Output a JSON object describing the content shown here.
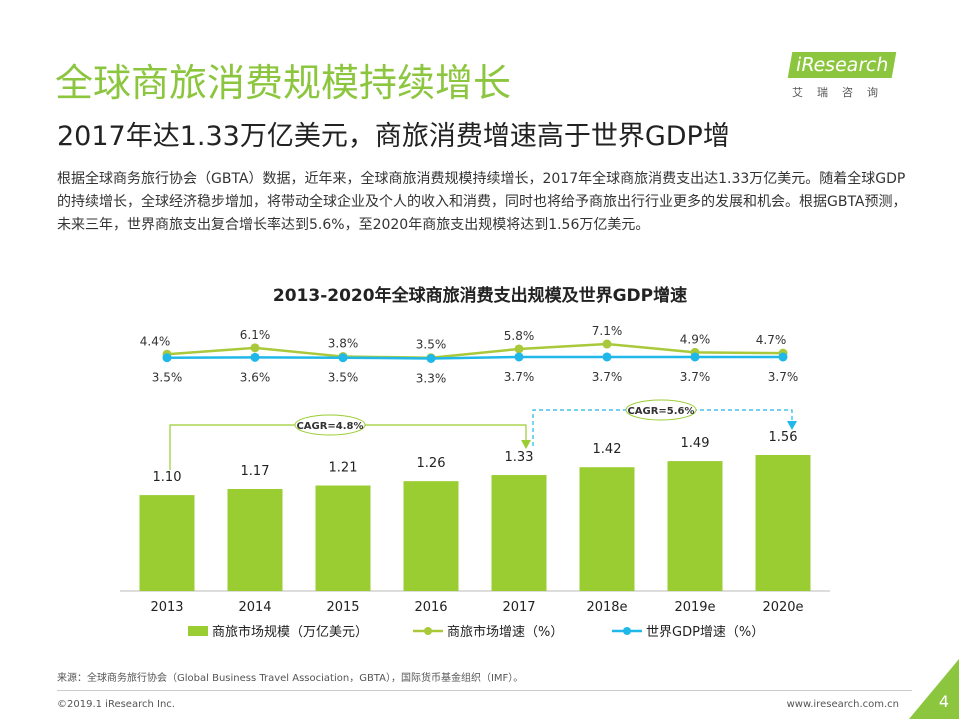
{
  "header": {
    "title": "全球商旅消费规模持续增长",
    "subtitle": "2017年达1.33万亿美元，商旅消费增速高于世界GDP增",
    "paragraph": "根据全球商务旅行协会（GBTA）数据，近年来，全球商旅消费规模持续增长，2017年全球商旅消费支出达1.33万亿美元。随着全球GDP的持续增长，全球经济稳步增加，将带动全球企业及个人的收入和消费，同时也将给予商旅出行行业更多的发展和机会。根据GBTA预测，未来三年，世界商旅支出复合增长率达到5.6%，至2020年商旅支出规模将达到1.56万亿美元。",
    "logo": {
      "brand": "iResearch",
      "subtitle": "艾瑞咨询"
    }
  },
  "chart_data": {
    "type": "combo",
    "title": "2013-2020年全球商旅消费支出规模及世界GDP增速",
    "categories": [
      "2013",
      "2014",
      "2015",
      "2016",
      "2017",
      "2018e",
      "2019e",
      "2020e"
    ],
    "series": [
      {
        "name": "商旅市场规模（万亿美元）",
        "type": "bar",
        "color": "#9acd32",
        "values": [
          1.1,
          1.17,
          1.21,
          1.26,
          1.33,
          1.42,
          1.49,
          1.56
        ],
        "value_labels": [
          "1.10",
          "1.17",
          "1.21",
          "1.26",
          "1.33",
          "1.42",
          "1.49",
          "1.56"
        ]
      },
      {
        "name": "商旅市场增速（%）",
        "type": "line",
        "color": "#a9c93b",
        "values": [
          4.4,
          6.1,
          3.8,
          3.5,
          5.8,
          7.1,
          4.9,
          4.7
        ],
        "value_labels": [
          "4.4%",
          "6.1%",
          "3.8%",
          "3.5%",
          "5.8%",
          "7.1%",
          "4.9%",
          "4.7%"
        ]
      },
      {
        "name": "世界GDP增速（%）",
        "type": "line",
        "color": "#1fb8e8",
        "values": [
          3.5,
          3.6,
          3.5,
          3.3,
          3.7,
          3.7,
          3.7,
          3.7
        ],
        "value_labels": [
          "3.5%",
          "3.6%",
          "3.5%",
          "3.3%",
          "3.7%",
          "3.7%",
          "3.7%",
          "3.7%"
        ]
      }
    ],
    "annotations": [
      "CAGR=4.8%",
      "CAGR=5.6%"
    ]
  },
  "footer": {
    "source": "来源：全球商务旅行协会（Global Business Travel Association，GBTA），国际货币基金组织（IMF）。",
    "copyright": "©2019.1 iResearch Inc.",
    "website": "www.iresearch.com.cn",
    "page": "4"
  }
}
